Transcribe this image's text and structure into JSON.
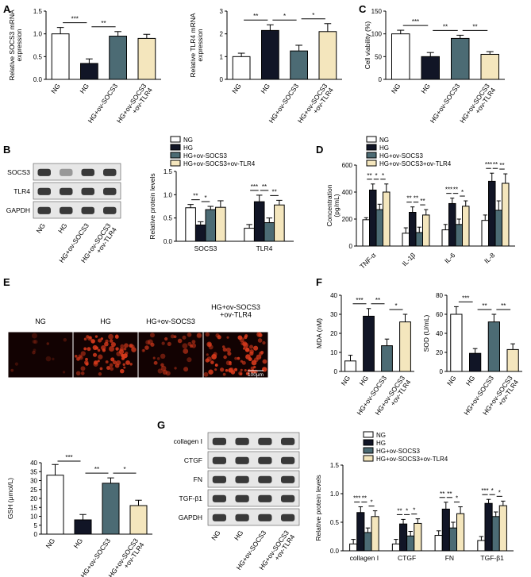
{
  "colors": {
    "NG": "#ffffff",
    "HG": "#111526",
    "ovS": "#4c6b74",
    "ovT": "#f4e6bd",
    "micro_bg": "#120202",
    "cell": "#d83a1c",
    "blot_bg": "#e7e7e7",
    "band": "#1a1a1a"
  },
  "labels": {
    "short": [
      "NG",
      "HG",
      "HG+ov-SOCS3",
      "HG+ov-SOCS3\n+ov-TLR4"
    ]
  },
  "legend": {
    "entries": [
      "NG",
      "HG",
      "HG+ov-SOCS3",
      "HG+ov-SOCS3+ov-TLR4"
    ]
  },
  "panels": {
    "A": "A",
    "B": "B",
    "C": "C",
    "D": "D",
    "E": "E",
    "F": "F",
    "G": "G"
  },
  "micro": {
    "labels": [
      "NG",
      "HG",
      "HG+ov-SOCS3",
      "HG+ov-SOCS3\n+ov-TLR4"
    ],
    "scale": "100μm"
  },
  "blotB": {
    "rows": [
      "SOCS3",
      "TLR4",
      "GAPDH"
    ]
  },
  "blotG": {
    "rows": [
      "collagen I",
      "CTGF",
      "FN",
      "TGF-β1",
      "GAPDH"
    ]
  },
  "chart_data": [
    {
      "id": "A1",
      "type": "bar",
      "ylabel": "Relative SOCS3 mRNA\nexpression",
      "ylim": [
        0,
        1.5
      ],
      "yticks": [
        "0.0",
        "0.5",
        "1.0",
        "1.5"
      ],
      "values": [
        1.0,
        0.35,
        0.95,
        0.9
      ],
      "errors": [
        0.14,
        0.1,
        0.1,
        0.09
      ],
      "sig": [
        {
          "a": 0,
          "b": 1,
          "t": "***"
        },
        {
          "a": 1,
          "b": 2,
          "t": "**"
        }
      ]
    },
    {
      "id": "A2",
      "type": "bar",
      "ylabel": "Relative TLR4 mRNA\nexpression",
      "ylim": [
        0,
        3
      ],
      "yticks": [
        "0",
        "1",
        "2",
        "3"
      ],
      "values": [
        1.0,
        2.15,
        1.25,
        2.1
      ],
      "errors": [
        0.15,
        0.25,
        0.25,
        0.35
      ],
      "sig": [
        {
          "a": 0,
          "b": 1,
          "t": "**"
        },
        {
          "a": 1,
          "b": 2,
          "t": "*"
        },
        {
          "a": 2,
          "b": 3,
          "t": "*"
        }
      ]
    },
    {
      "id": "C",
      "type": "bar",
      "ylabel": "Cell viability (%)",
      "ylim": [
        0,
        150
      ],
      "yticks": [
        "0",
        "50",
        "100",
        "150"
      ],
      "values": [
        100,
        50,
        90,
        55
      ],
      "errors": [
        8,
        9,
        7,
        6
      ],
      "sig": [
        {
          "a": 0,
          "b": 1,
          "t": "***"
        },
        {
          "a": 1,
          "b": 2,
          "t": "**"
        },
        {
          "a": 2,
          "b": 3,
          "t": "**"
        }
      ]
    },
    {
      "id": "B",
      "type": "bar",
      "ylabel": "Relative protein levels",
      "ylim": [
        0,
        1.5
      ],
      "yticks": [
        "0.0",
        "0.5",
        "1.0",
        "1.5"
      ],
      "categories": [
        "SOCS3",
        "TLR4"
      ],
      "series": [
        {
          "values": [
            0.72,
            0.28
          ],
          "errors": [
            0.07,
            0.08
          ]
        },
        {
          "values": [
            0.35,
            0.85
          ],
          "errors": [
            0.07,
            0.14
          ]
        },
        {
          "values": [
            0.68,
            0.4
          ],
          "errors": [
            0.07,
            0.1
          ]
        },
        {
          "values": [
            0.73,
            0.78
          ],
          "errors": [
            0.14,
            0.1
          ]
        }
      ],
      "sig": [
        {
          "c": 0,
          "a": 0,
          "b": 1,
          "t": "**"
        },
        {
          "c": 0,
          "a": 1,
          "b": 2,
          "t": "*"
        },
        {
          "c": 1,
          "a": 0,
          "b": 1,
          "t": "***"
        },
        {
          "c": 1,
          "a": 1,
          "b": 2,
          "t": "**"
        },
        {
          "c": 1,
          "a": 2,
          "b": 3,
          "t": "**"
        }
      ]
    },
    {
      "id": "D",
      "type": "bar",
      "ylabel": "Concentration\n(pg/mL)",
      "ylim": [
        0,
        600
      ],
      "yticks": [
        "0",
        "200",
        "400",
        "600"
      ],
      "categories": [
        "TNF-α",
        "IL-1β",
        "IL-6",
        "IL-8"
      ],
      "series": [
        {
          "values": [
            195,
            95,
            120,
            190
          ],
          "errors": [
            15,
            40,
            40,
            40
          ]
        },
        {
          "values": [
            415,
            250,
            315,
            480
          ],
          "errors": [
            45,
            40,
            40,
            60
          ]
        },
        {
          "values": [
            270,
            100,
            160,
            265
          ],
          "errors": [
            40,
            40,
            40,
            70
          ]
        },
        {
          "values": [
            400,
            230,
            295,
            465
          ],
          "errors": [
            60,
            40,
            40,
            70
          ]
        }
      ],
      "sig": [
        {
          "c": 0,
          "a": 0,
          "b": 1,
          "t": "**"
        },
        {
          "c": 0,
          "a": 1,
          "b": 2,
          "t": "*"
        },
        {
          "c": 0,
          "a": 2,
          "b": 3,
          "t": "*"
        },
        {
          "c": 1,
          "a": 0,
          "b": 1,
          "t": "**"
        },
        {
          "c": 1,
          "a": 1,
          "b": 2,
          "t": "**"
        },
        {
          "c": 1,
          "a": 2,
          "b": 3,
          "t": "**"
        },
        {
          "c": 2,
          "a": 0,
          "b": 1,
          "t": "***"
        },
        {
          "c": 2,
          "a": 1,
          "b": 2,
          "t": "**"
        },
        {
          "c": 2,
          "a": 2,
          "b": 3,
          "t": "*"
        },
        {
          "c": 3,
          "a": 0,
          "b": 1,
          "t": "***"
        },
        {
          "c": 3,
          "a": 1,
          "b": 2,
          "t": "**"
        },
        {
          "c": 3,
          "a": 2,
          "b": 3,
          "t": "**"
        }
      ]
    },
    {
      "id": "F1",
      "type": "bar",
      "ylabel": "MDA (nM)",
      "ylim": [
        0,
        40
      ],
      "yticks": [
        "0",
        "10",
        "20",
        "30",
        "40"
      ],
      "values": [
        5.5,
        29,
        13.5,
        26
      ],
      "errors": [
        3,
        4,
        3.5,
        4
      ],
      "sig": [
        {
          "a": 0,
          "b": 1,
          "t": "***"
        },
        {
          "a": 1,
          "b": 2,
          "t": "**"
        },
        {
          "a": 2,
          "b": 3,
          "t": "*"
        }
      ]
    },
    {
      "id": "F2",
      "type": "bar",
      "ylabel": "SOD (U/mL)",
      "ylim": [
        0,
        80
      ],
      "yticks": [
        "0",
        "20",
        "40",
        "60",
        "80"
      ],
      "values": [
        60,
        19,
        52,
        23
      ],
      "errors": [
        8,
        5,
        8,
        6
      ],
      "sig": [
        {
          "a": 0,
          "b": 1,
          "t": "***"
        },
        {
          "a": 1,
          "b": 2,
          "t": "**"
        },
        {
          "a": 2,
          "b": 3,
          "t": "**"
        }
      ]
    },
    {
      "id": "GSH",
      "type": "bar",
      "ylabel": "GSH (μmol/L)",
      "ylim": [
        0,
        40
      ],
      "yticks": [
        "0",
        "5",
        "10",
        "15",
        "20",
        "25",
        "30",
        "35",
        "40"
      ],
      "values": [
        33,
        8,
        28.5,
        16
      ],
      "errors": [
        6,
        3,
        3,
        3
      ],
      "sig": [
        {
          "a": 0,
          "b": 1,
          "t": "***"
        },
        {
          "a": 1,
          "b": 2,
          "t": "**"
        },
        {
          "a": 2,
          "b": 3,
          "t": "*"
        }
      ]
    },
    {
      "id": "G",
      "type": "bar",
      "ylabel": "Relative protein levels",
      "ylim": [
        0,
        1.5
      ],
      "yticks": [
        "0.0",
        "0.5",
        "1.0",
        "1.5"
      ],
      "categories": [
        "collagen I",
        "CTGF",
        "FN",
        "TGF-β1"
      ],
      "series": [
        {
          "values": [
            0.12,
            0.12,
            0.27,
            0.18
          ],
          "errors": [
            0.08,
            0.08,
            0.08,
            0.07
          ]
        },
        {
          "values": [
            0.67,
            0.47,
            0.73,
            0.83
          ],
          "errors": [
            0.1,
            0.08,
            0.12,
            0.07
          ]
        },
        {
          "values": [
            0.32,
            0.26,
            0.4,
            0.6
          ],
          "errors": [
            0.08,
            0.08,
            0.1,
            0.08
          ]
        },
        {
          "values": [
            0.6,
            0.48,
            0.65,
            0.79
          ],
          "errors": [
            0.1,
            0.08,
            0.12,
            0.08
          ]
        }
      ],
      "sig": [
        {
          "c": 0,
          "a": 0,
          "b": 1,
          "t": "***"
        },
        {
          "c": 0,
          "a": 1,
          "b": 2,
          "t": "**"
        },
        {
          "c": 0,
          "a": 2,
          "b": 3,
          "t": "*"
        },
        {
          "c": 1,
          "a": 0,
          "b": 1,
          "t": "**"
        },
        {
          "c": 1,
          "a": 1,
          "b": 2,
          "t": "*"
        },
        {
          "c": 1,
          "a": 2,
          "b": 3,
          "t": "*"
        },
        {
          "c": 2,
          "a": 0,
          "b": 1,
          "t": "**"
        },
        {
          "c": 2,
          "a": 1,
          "b": 2,
          "t": "**"
        },
        {
          "c": 2,
          "a": 2,
          "b": 3,
          "t": "*"
        },
        {
          "c": 3,
          "a": 0,
          "b": 1,
          "t": "***"
        },
        {
          "c": 3,
          "a": 1,
          "b": 2,
          "t": "*"
        },
        {
          "c": 3,
          "a": 2,
          "b": 3,
          "t": "*"
        }
      ]
    }
  ]
}
